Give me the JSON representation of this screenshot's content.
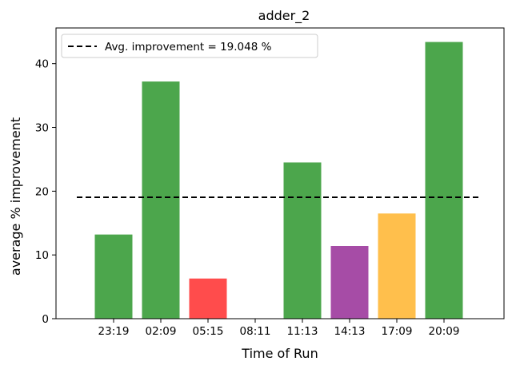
{
  "chart_data": {
    "type": "bar",
    "title": "adder_2",
    "xlabel": "Time of Run",
    "ylabel": "average % improvement",
    "categories": [
      "23:19",
      "02:09",
      "05:15",
      "08:11",
      "11:13",
      "14:13",
      "17:09",
      "20:09"
    ],
    "values": [
      13.2,
      37.2,
      6.3,
      0,
      24.5,
      11.4,
      16.5,
      43.4
    ],
    "bar_colors": [
      "#4ca64c",
      "#4ca64c",
      "#ff4c4c",
      "#4ca64c",
      "#4ca64c",
      "#a64ca6",
      "#ffbf4c",
      "#4ca64c"
    ],
    "ylim": [
      0,
      45.6
    ],
    "yticks": [
      0,
      10,
      20,
      30,
      40
    ],
    "average_line": {
      "value": 19.048,
      "color": "#000000",
      "style": "dashed"
    },
    "legend": {
      "position": "top-left",
      "entries": [
        "Avg. improvement = 19.048 %"
      ]
    },
    "grid": false
  }
}
